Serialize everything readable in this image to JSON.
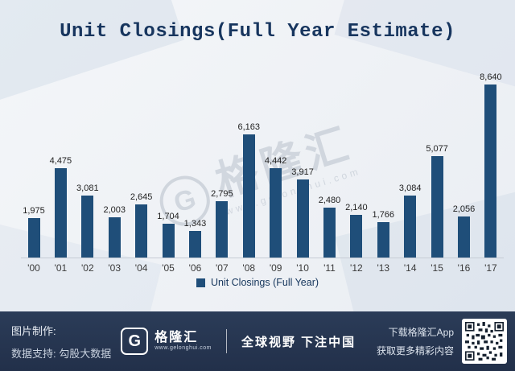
{
  "title": "Unit Closings(Full Year Estimate)",
  "chart_data": {
    "type": "bar",
    "title": "Unit Closings(Full Year Estimate)",
    "categories": [
      "'00",
      "'01",
      "'02",
      "'03",
      "'04",
      "'05",
      "'06",
      "'07",
      "'08",
      "'09",
      "'10",
      "'11",
      "'12",
      "'13",
      "'14",
      "'15",
      "'16",
      "'17"
    ],
    "values": [
      1975,
      4475,
      3081,
      2003,
      2645,
      1704,
      1343,
      2795,
      6163,
      4442,
      3917,
      2480,
      2140,
      1766,
      3084,
      5077,
      2056,
      8640
    ],
    "labels": [
      "1,975",
      "4,475",
      "3,081",
      "2,003",
      "2,645",
      "1,704",
      "1,343",
      "2,795",
      "6,163",
      "4,442",
      "3,917",
      "2,480",
      "2,140",
      "1,766",
      "3,084",
      "5,077",
      "2,056",
      "8,640"
    ],
    "legend": "Unit Closings (Full Year)",
    "bar_color": "#1f4e79",
    "xlabel": "",
    "ylabel": "",
    "ylim": [
      0,
      9000
    ],
    "grid": false,
    "legend_position": "bottom"
  },
  "watermark": {
    "glyph": "G",
    "text": "格隆汇",
    "url": "www.gelonghui.com"
  },
  "footer": {
    "made_by_label": "图片制作:",
    "logo_glyph": "G",
    "logo_text": "格隆汇",
    "logo_url": "www.gelonghui.com",
    "slogan": "全球视野 下注中国",
    "data_support": "数据支持: 勾股大数据",
    "download": "下载格隆汇App",
    "more": "获取更多精彩内容"
  }
}
